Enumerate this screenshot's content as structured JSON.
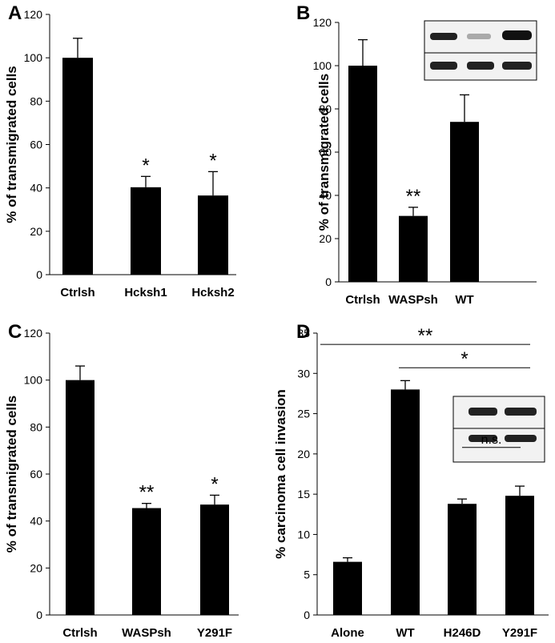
{
  "chart_data": [
    {
      "type": "bar",
      "panel": "A",
      "y_label": "% of transmigrated cells",
      "categories": [
        "Ctrlsh",
        "Hcksh1",
        "Hcksh2"
      ],
      "values": [
        100,
        40.3,
        36.5
      ],
      "errors": [
        9,
        5,
        11
      ],
      "color": "#000000",
      "ylim": [
        0,
        120
      ],
      "yticks": [
        0,
        20,
        40,
        60,
        80,
        100,
        120
      ],
      "annotations": [
        "*",
        "*"
      ]
    },
    {
      "type": "bar",
      "panel": "B",
      "y_label": "% of transmigrated cells",
      "categories": [
        "Ctrlsh",
        "WASPsh",
        "WT"
      ],
      "values": [
        100,
        30.5,
        74
      ],
      "errors": [
        12,
        4,
        12.5
      ],
      "color": "#000000",
      "ylim": [
        0,
        120
      ],
      "yticks": [
        0,
        20,
        40,
        60,
        80,
        100,
        120
      ],
      "annotations": [
        "**"
      ]
    },
    {
      "type": "bar",
      "panel": "C",
      "y_label": "% of transmigrated cells",
      "categories": [
        "Ctrlsh",
        "WASPsh",
        "Y291F"
      ],
      "values": [
        100,
        45.5,
        47
      ],
      "errors": [
        6,
        2,
        4
      ],
      "color": "#000000",
      "ylim": [
        0,
        120
      ],
      "yticks": [
        0,
        20,
        40,
        60,
        80,
        100,
        120
      ],
      "annotations": [
        "**",
        "*"
      ]
    },
    {
      "type": "bar",
      "panel": "D",
      "y_label": "% carcinoma cell invasion",
      "categories": [
        "Alone",
        "WT",
        "H246D",
        "Y291F"
      ],
      "values": [
        6.6,
        28,
        13.8,
        14.8
      ],
      "errors": [
        0.5,
        1.1,
        0.6,
        1.2
      ],
      "color": "#000000",
      "ylim": [
        0,
        35
      ],
      "yticks": [
        0,
        5,
        10,
        15,
        20,
        25,
        30,
        35
      ],
      "annotations": [
        "**",
        "*",
        "n.s."
      ]
    }
  ]
}
